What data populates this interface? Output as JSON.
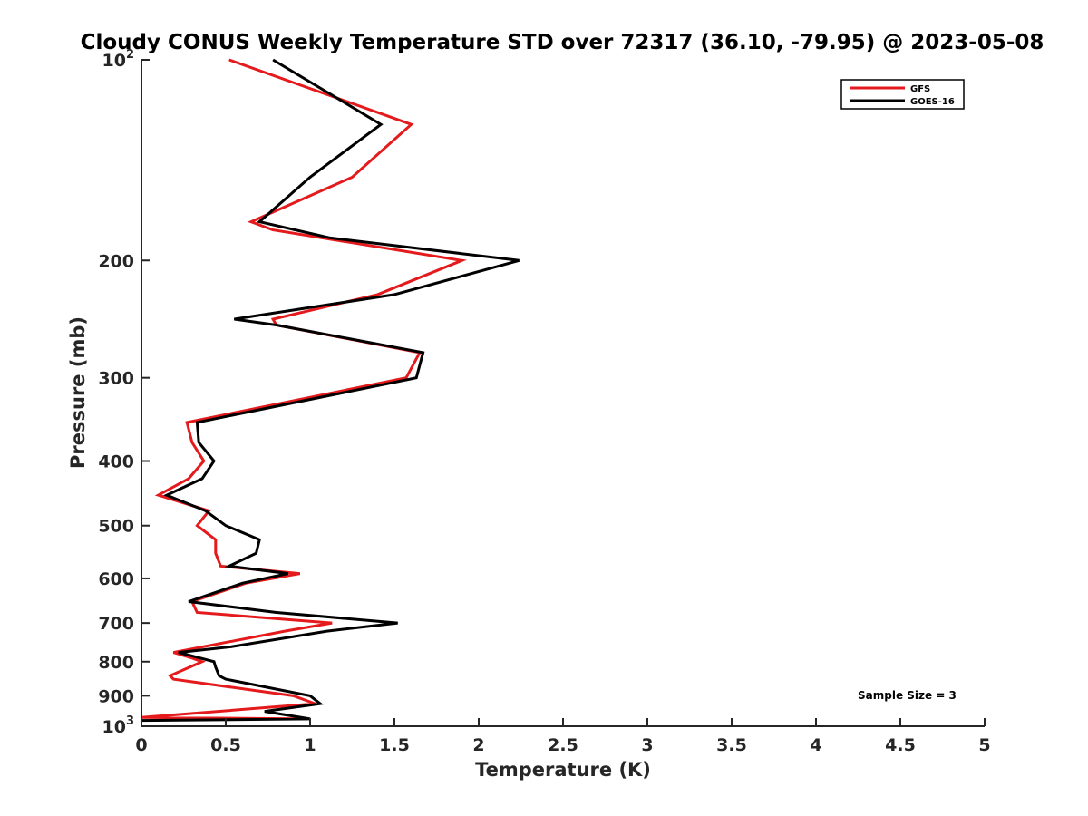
{
  "chart_data": {
    "type": "line",
    "title": "Cloudy CONUS Weekly Temperature STD over 72317 (36.10, -79.95) @ 2023-05-08",
    "xlabel": "Temperature (K)",
    "ylabel": "Pressure (mb)",
    "xlim": [
      0,
      5
    ],
    "ylim": [
      100,
      1000
    ],
    "y_scale": "log",
    "y_reversed": true,
    "x_ticks": [
      "0",
      "0.5",
      "1",
      "1.5",
      "2",
      "2.5",
      "3",
      "3.5",
      "4",
      "4.5",
      "5"
    ],
    "x_tick_values": [
      0,
      0.5,
      1,
      1.5,
      2,
      2.5,
      3,
      3.5,
      4,
      4.5,
      5
    ],
    "y_ticks": [
      {
        "value": 100,
        "base": "10",
        "exp": "2"
      },
      {
        "value": 200,
        "label": "200"
      },
      {
        "value": 300,
        "label": "300"
      },
      {
        "value": 400,
        "label": "400"
      },
      {
        "value": 500,
        "label": "500"
      },
      {
        "value": 600,
        "label": "600"
      },
      {
        "value": 700,
        "label": "700"
      },
      {
        "value": 800,
        "label": "800"
      },
      {
        "value": 900,
        "label": "900"
      },
      {
        "value": 1000,
        "base": "10",
        "exp": "3"
      }
    ],
    "grid": false,
    "legend_position": "top-right",
    "annotation": "Sample Size = 3",
    "series": [
      {
        "name": "GFS",
        "color": "#e41a1c",
        "points": [
          [
            0.52,
            100
          ],
          [
            1.6,
            125
          ],
          [
            1.25,
            150
          ],
          [
            0.65,
            175
          ],
          [
            0.78,
            180
          ],
          [
            1.9,
            200
          ],
          [
            1.4,
            225
          ],
          [
            0.78,
            245
          ],
          [
            0.8,
            250
          ],
          [
            1.65,
            275
          ],
          [
            1.57,
            300
          ],
          [
            0.27,
            350
          ],
          [
            0.3,
            375
          ],
          [
            0.37,
            400
          ],
          [
            0.28,
            425
          ],
          [
            0.1,
            450
          ],
          [
            0.4,
            475
          ],
          [
            0.33,
            500
          ],
          [
            0.44,
            525
          ],
          [
            0.44,
            550
          ],
          [
            0.47,
            575
          ],
          [
            0.94,
            590
          ],
          [
            0.62,
            610
          ],
          [
            0.3,
            650
          ],
          [
            0.33,
            675
          ],
          [
            1.13,
            700
          ],
          [
            0.85,
            720
          ],
          [
            0.19,
            775
          ],
          [
            0.3,
            790
          ],
          [
            0.36,
            800
          ],
          [
            0.17,
            840
          ],
          [
            0.19,
            850
          ],
          [
            0.9,
            900
          ],
          [
            1.03,
            925
          ],
          [
            0.0,
            970
          ],
          [
            0.98,
            975
          ]
        ]
      },
      {
        "name": "GOES-16",
        "color": "#000000",
        "points": [
          [
            0.78,
            100
          ],
          [
            1.42,
            125
          ],
          [
            1.0,
            150
          ],
          [
            0.7,
            175
          ],
          [
            1.12,
            185
          ],
          [
            2.24,
            200
          ],
          [
            1.5,
            225
          ],
          [
            0.55,
            245
          ],
          [
            0.8,
            250
          ],
          [
            1.67,
            275
          ],
          [
            1.63,
            300
          ],
          [
            0.33,
            350
          ],
          [
            0.34,
            375
          ],
          [
            0.43,
            400
          ],
          [
            0.36,
            425
          ],
          [
            0.15,
            450
          ],
          [
            0.38,
            475
          ],
          [
            0.5,
            500
          ],
          [
            0.7,
            525
          ],
          [
            0.68,
            550
          ],
          [
            0.52,
            575
          ],
          [
            0.87,
            590
          ],
          [
            0.6,
            610
          ],
          [
            0.28,
            650
          ],
          [
            0.8,
            675
          ],
          [
            1.52,
            700
          ],
          [
            1.1,
            720
          ],
          [
            0.53,
            760
          ],
          [
            0.22,
            775
          ],
          [
            0.43,
            800
          ],
          [
            0.44,
            815
          ],
          [
            0.46,
            840
          ],
          [
            0.5,
            850
          ],
          [
            1.0,
            900
          ],
          [
            1.06,
            925
          ],
          [
            0.73,
            950
          ],
          [
            1.0,
            975
          ],
          [
            0.0,
            980
          ]
        ]
      }
    ]
  }
}
